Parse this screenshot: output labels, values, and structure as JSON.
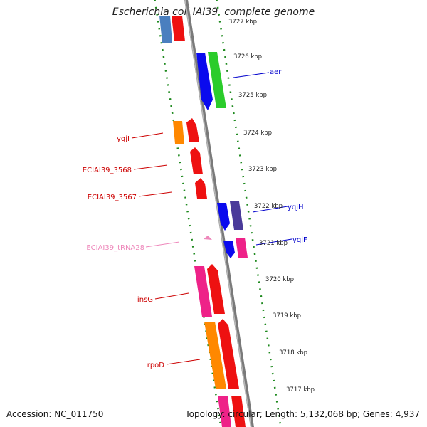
{
  "map_title": "Escherichia coli IAI39, complete genome",
  "accession_text": "Accession: NC_011750",
  "summary_text": "Topology: circular; Length: 5,132,068 bp; Genes: 4,937",
  "colors": {
    "backbone": "#7a7a7a",
    "tick": "#1f8a1f",
    "scale_text": "#222222",
    "label_red": "#cc0000",
    "label_blue": "#0000cc",
    "label_pink": "#ee88bb"
  },
  "scale_labels": [
    "3727 kbp",
    "3726 kbp",
    "3725 kbp",
    "3724 kbp",
    "3723 kbp",
    "3722 kbp",
    "3721 kbp",
    "3720 kbp",
    "3719 kbp",
    "3718 kbp",
    "3717 kbp"
  ],
  "gene_labels": [
    {
      "text": "aer",
      "color": "blue"
    },
    {
      "text": "yqjI",
      "color": "red"
    },
    {
      "text": "ECIAI39_3568",
      "color": "red"
    },
    {
      "text": "ECIAI39_3567",
      "color": "red"
    },
    {
      "text": "yqjH",
      "color": "blue"
    },
    {
      "text": "yqjF",
      "color": "blue"
    },
    {
      "text": "ECIAI39_tRNA28",
      "color": "pink"
    },
    {
      "text": "insG",
      "color": "red"
    },
    {
      "text": "rpoD",
      "color": "red"
    }
  ]
}
